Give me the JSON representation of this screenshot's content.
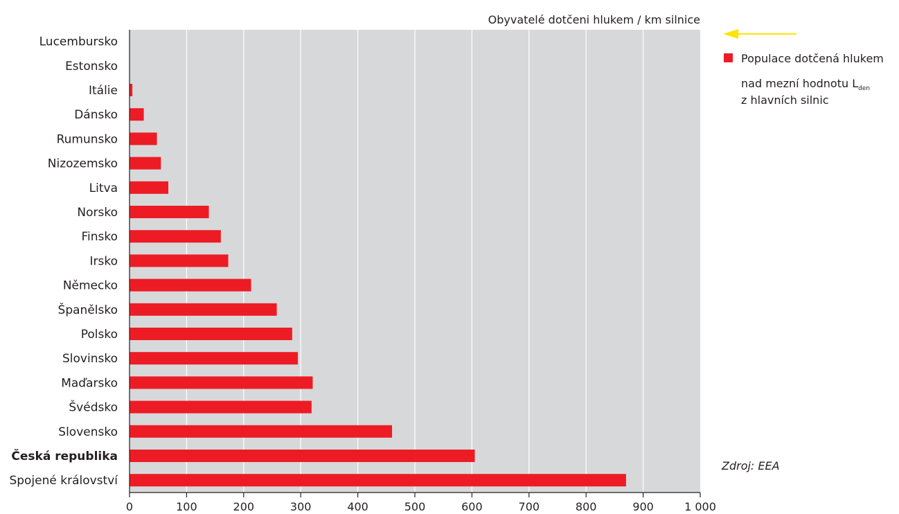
{
  "chart_data": {
    "type": "bar",
    "orientation": "horizontal",
    "categories": [
      "Lucembursko",
      "Estonsko",
      "Itálie",
      "Dánsko",
      "Rumunsko",
      "Nizozemsko",
      "Litva",
      "Norsko",
      "Finsko",
      "Irsko",
      "Německo",
      "Španělsko",
      "Polsko",
      "Slovinsko",
      "Maďarsko",
      "Švédsko",
      "Slovensko",
      "Česká republika",
      "Spojené království"
    ],
    "highlight_category": "Česká republika",
    "series": [
      {
        "name": "Populace dotčená hlukem nad mezní hodnotu Lden z hlavních silnic",
        "color": "#ed1c24",
        "values": [
          0,
          0,
          5,
          25,
          48,
          55,
          68,
          139,
          160,
          173,
          213,
          258,
          285,
          295,
          321,
          319,
          460,
          605,
          870
        ]
      }
    ],
    "xlabel": "Obyvatelé dotčeni hlukem / km silnice",
    "xlim": [
      0,
      1000
    ],
    "xticks": [
      0,
      100,
      200,
      300,
      400,
      500,
      600,
      700,
      800,
      900,
      1000
    ],
    "xtick_labels": [
      "0",
      "100",
      "200",
      "300",
      "400",
      "500",
      "600",
      "700",
      "800",
      "900",
      "1 000"
    ],
    "grid": true,
    "plot_background": "#d7d8da",
    "legend": {
      "placement": "right",
      "line1": "Populace dotčená hlukem",
      "line2_prefix": "nad mezní hodnotu L",
      "line2_subscript": "den",
      "line3": "z hlavních silnic",
      "marker_color": "#ed1c24",
      "arrow_color": "#ffe400",
      "arrow_icon": "arrow-left-icon"
    },
    "source": "Zdroj: EEA"
  }
}
